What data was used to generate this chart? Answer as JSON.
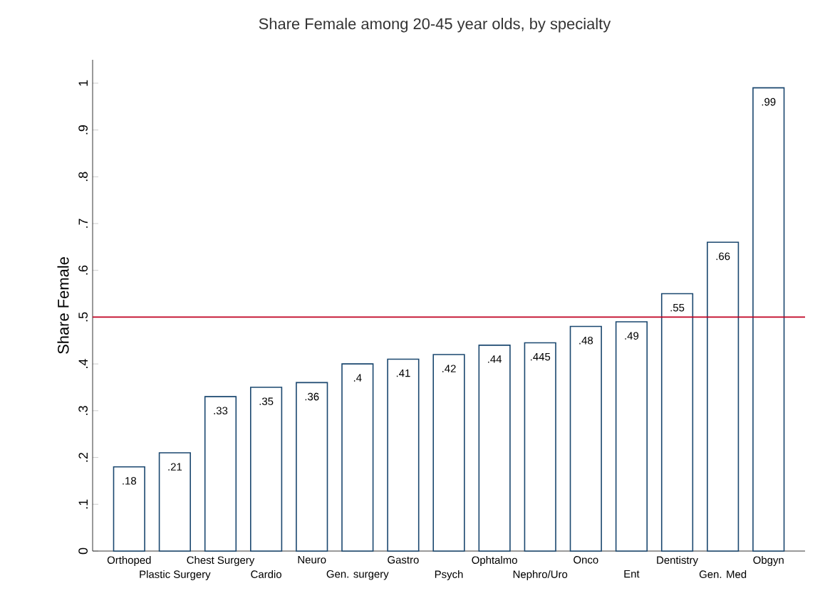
{
  "chart_data": {
    "type": "bar",
    "title": "Share Female among 20-45 year olds, by specialty",
    "ylabel": "Share Female",
    "categories": [
      "Orthoped",
      "Plastic Surgery",
      "Chest Surgery",
      "Cardio",
      "Neuro",
      "Gen. surgery",
      "Gastro",
      "Psych",
      "Ophtalmo",
      "Nephro/Uro",
      "Onco",
      "Ent",
      "Dentistry",
      "Gen. Med",
      "Obgyn"
    ],
    "values": [
      0.18,
      0.21,
      0.33,
      0.35,
      0.36,
      0.4,
      0.41,
      0.42,
      0.44,
      0.445,
      0.48,
      0.49,
      0.55,
      0.66,
      0.99
    ],
    "value_labels": [
      ".18",
      ".21",
      ".33",
      ".35",
      ".36",
      ".4",
      ".41",
      ".42",
      ".44",
      ".445",
      ".48",
      ".49",
      ".55",
      ".66",
      ".99"
    ],
    "color": "#1a476f",
    "ylim": [
      0,
      1.05
    ],
    "yticks": [
      {
        "value": 0,
        "label": "0"
      },
      {
        "value": 0.1,
        "label": ".1"
      },
      {
        "value": 0.2,
        "label": ".2"
      },
      {
        "value": 0.3,
        "label": ".3"
      },
      {
        "value": 0.4,
        "label": ".4"
      },
      {
        "value": 0.5,
        "label": ".5"
      },
      {
        "value": 0.6,
        "label": ".6"
      },
      {
        "value": 0.7,
        "label": ".7"
      },
      {
        "value": 0.8,
        "label": ".8"
      },
      {
        "value": 0.9,
        "label": ".9"
      },
      {
        "value": 1,
        "label": "1"
      }
    ],
    "ref_lines": [
      {
        "axis": "y",
        "value": 0.5,
        "color": "#c00020"
      }
    ],
    "grid": false
  }
}
